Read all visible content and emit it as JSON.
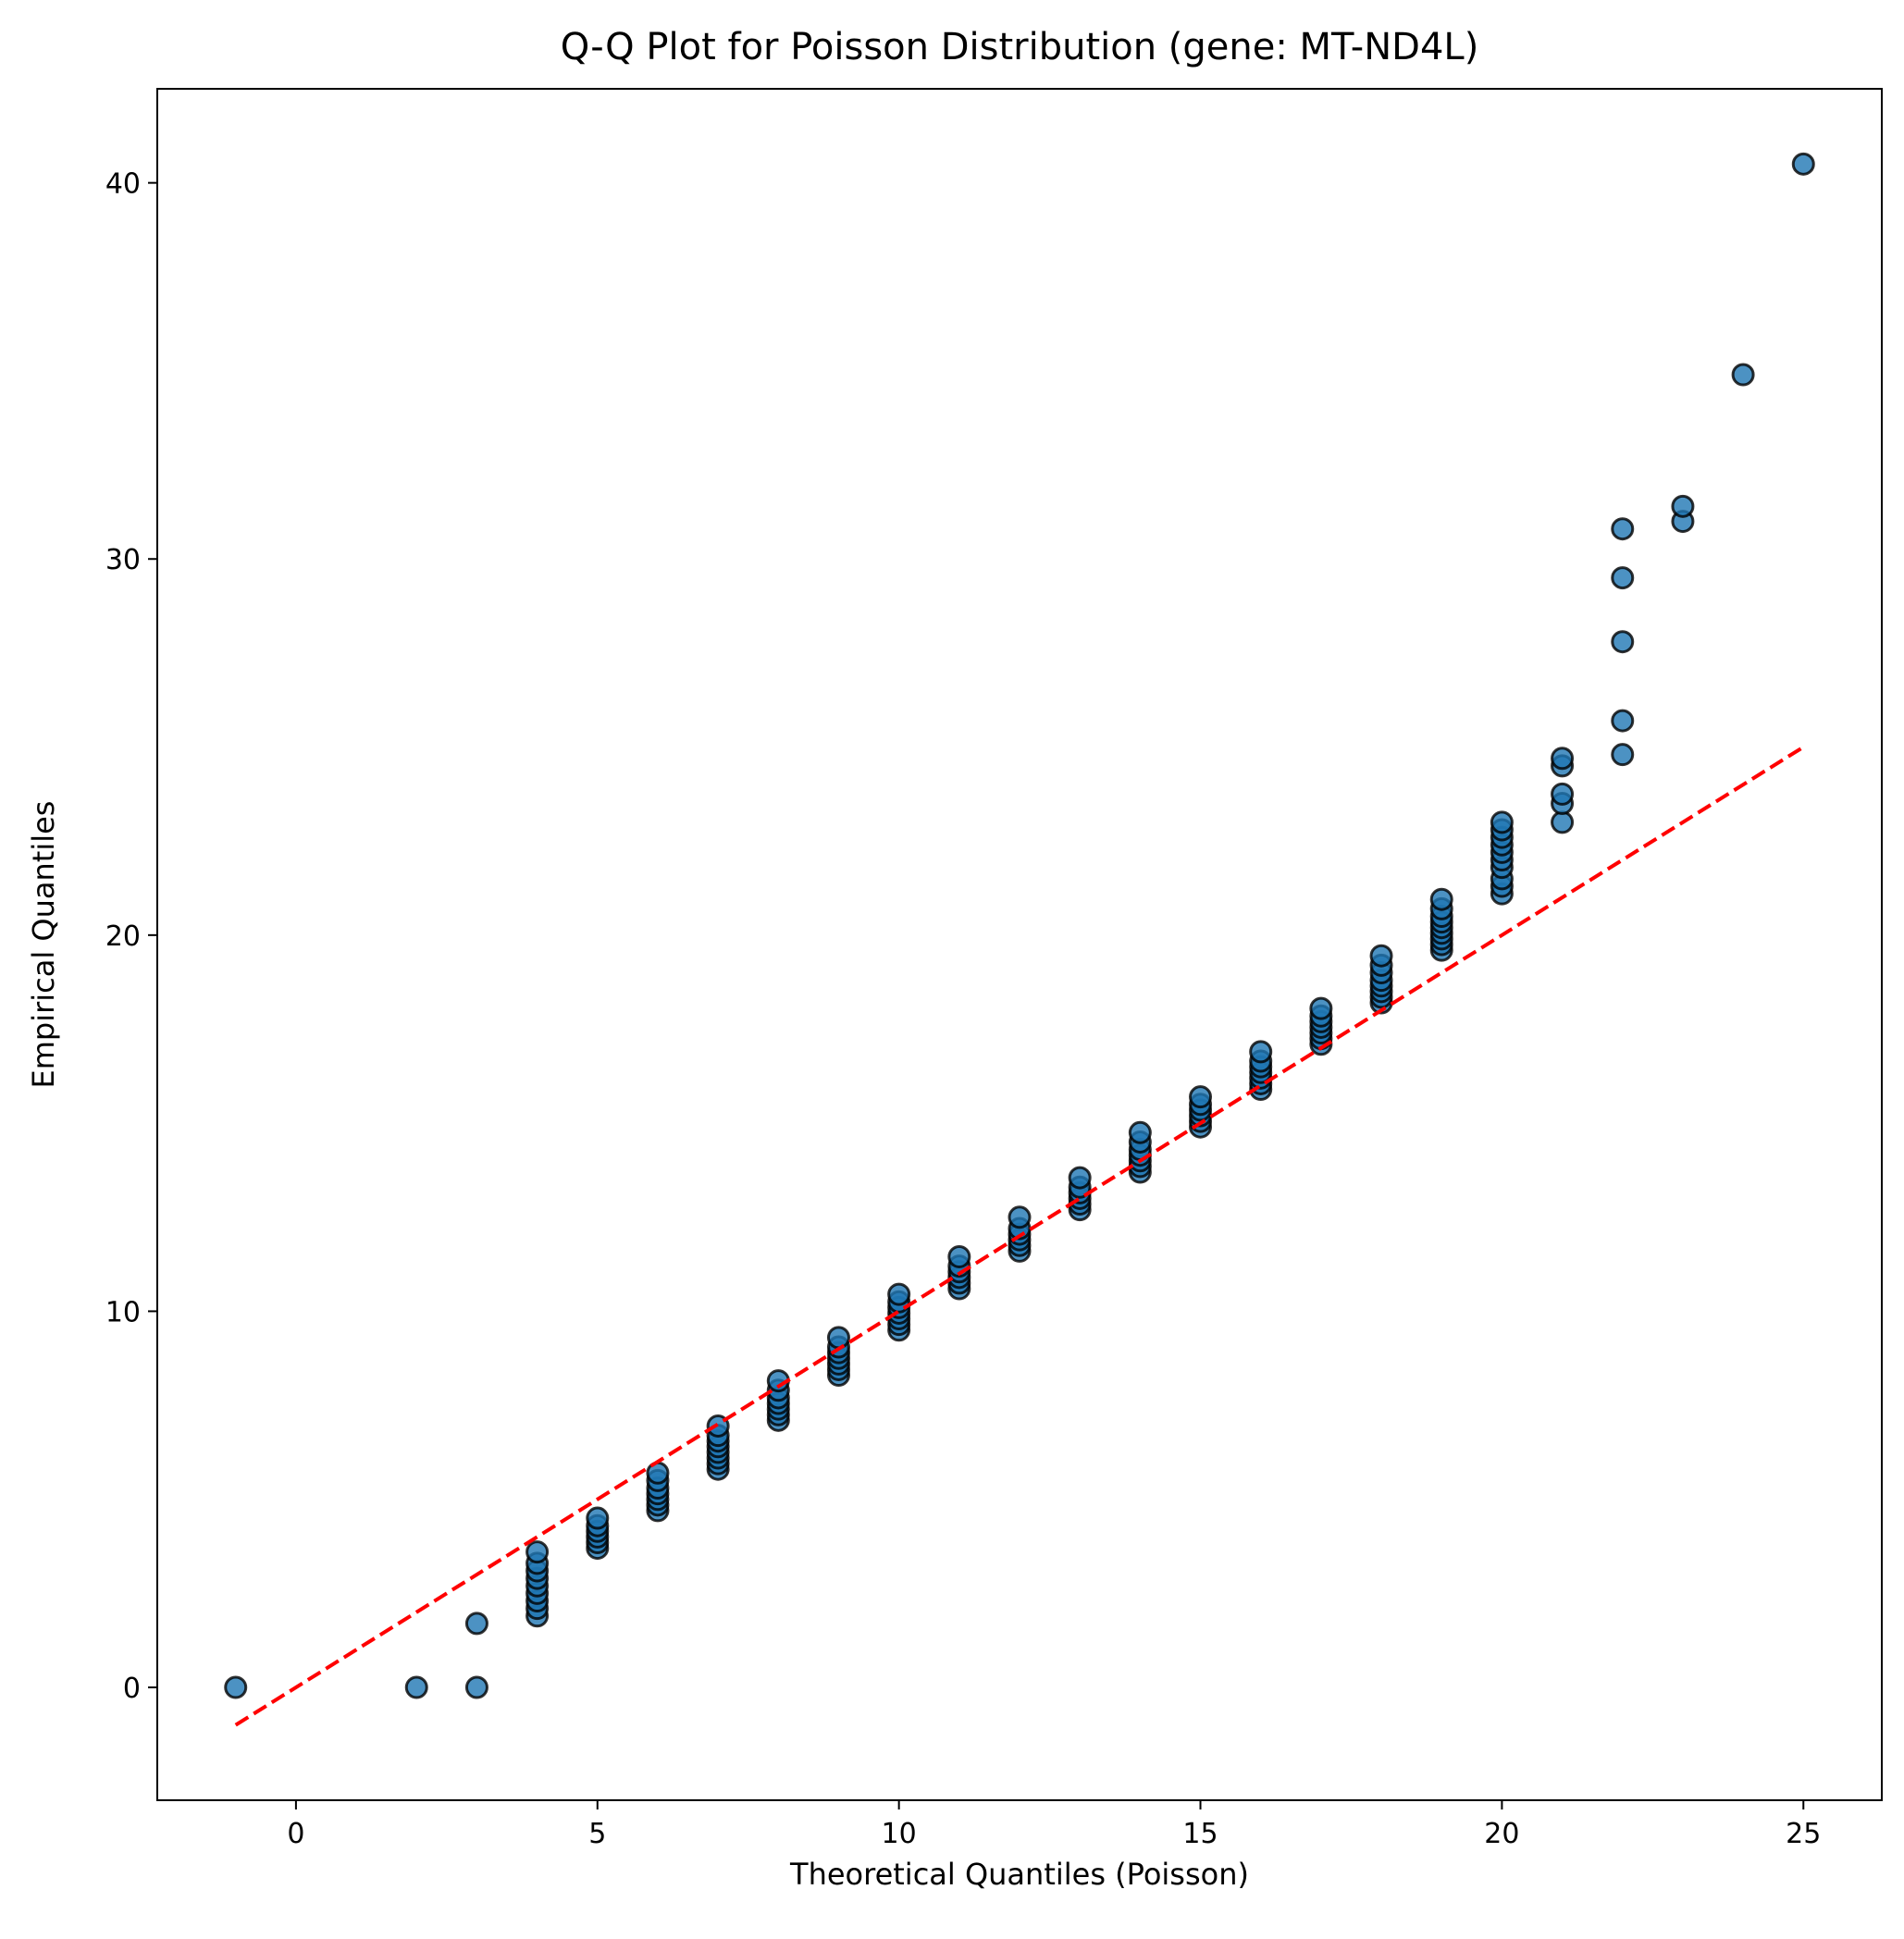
{
  "chart_data": {
    "type": "scatter",
    "title": "Q-Q Plot for Poisson Distribution (gene: MT-ND4L)",
    "xlabel": "Theoretical Quantiles (Poisson)",
    "ylabel": "Empirical Quantiles",
    "xlim": [
      -2.3,
      26.3
    ],
    "ylim": [
      -3,
      42.5
    ],
    "xticks": [
      0,
      5,
      10,
      15,
      20,
      25
    ],
    "yticks": [
      0,
      10,
      20,
      30,
      40
    ],
    "grid": false,
    "reference_line": {
      "name": "y = x",
      "x": [
        -1,
        25
      ],
      "y": [
        -1,
        25
      ],
      "color": "#ff0000",
      "style": "dashed"
    },
    "marker_color": "#1f77b4",
    "marker_edge_color": "#000000",
    "series": [
      {
        "name": "quantiles",
        "points": [
          [
            -1,
            0
          ],
          [
            2,
            0
          ],
          [
            3,
            0
          ],
          [
            3,
            1.7
          ],
          [
            4,
            1.9
          ],
          [
            4,
            2.1
          ],
          [
            4,
            2.3
          ],
          [
            4,
            2.5
          ],
          [
            4,
            2.7
          ],
          [
            4,
            2.9
          ],
          [
            4,
            3.1
          ],
          [
            4,
            3.3
          ],
          [
            4,
            3.6
          ],
          [
            5,
            3.7
          ],
          [
            5,
            3.85
          ],
          [
            5,
            4.0
          ],
          [
            5,
            4.15
          ],
          [
            5,
            4.3
          ],
          [
            5,
            4.5
          ],
          [
            6,
            4.7
          ],
          [
            6,
            4.85
          ],
          [
            6,
            5.0
          ],
          [
            6,
            5.15
          ],
          [
            6,
            5.3
          ],
          [
            6,
            5.5
          ],
          [
            6,
            5.7
          ],
          [
            7,
            5.8
          ],
          [
            7,
            5.95
          ],
          [
            7,
            6.1
          ],
          [
            7,
            6.25
          ],
          [
            7,
            6.4
          ],
          [
            7,
            6.55
          ],
          [
            7,
            6.7
          ],
          [
            7,
            6.95
          ],
          [
            8,
            7.1
          ],
          [
            8,
            7.25
          ],
          [
            8,
            7.4
          ],
          [
            8,
            7.55
          ],
          [
            8,
            7.7
          ],
          [
            8,
            7.9
          ],
          [
            8,
            8.15
          ],
          [
            9,
            8.3
          ],
          [
            9,
            8.45
          ],
          [
            9,
            8.6
          ],
          [
            9,
            8.75
          ],
          [
            9,
            8.9
          ],
          [
            9,
            9.05
          ],
          [
            9,
            9.3
          ],
          [
            10,
            9.5
          ],
          [
            10,
            9.65
          ],
          [
            10,
            9.8
          ],
          [
            10,
            9.95
          ],
          [
            10,
            10.1
          ],
          [
            10,
            10.25
          ],
          [
            10,
            10.45
          ],
          [
            11,
            10.6
          ],
          [
            11,
            10.75
          ],
          [
            11,
            10.9
          ],
          [
            11,
            11.05
          ],
          [
            11,
            11.2
          ],
          [
            11,
            11.45
          ],
          [
            12,
            11.6
          ],
          [
            12,
            11.75
          ],
          [
            12,
            11.9
          ],
          [
            12,
            12.05
          ],
          [
            12,
            12.2
          ],
          [
            12,
            12.5
          ],
          [
            13,
            12.7
          ],
          [
            13,
            12.85
          ],
          [
            13,
            13.0
          ],
          [
            13,
            13.15
          ],
          [
            13,
            13.3
          ],
          [
            13,
            13.55
          ],
          [
            14,
            13.7
          ],
          [
            14,
            13.85
          ],
          [
            14,
            14.0
          ],
          [
            14,
            14.15
          ],
          [
            14,
            14.3
          ],
          [
            14,
            14.5
          ],
          [
            14,
            14.75
          ],
          [
            15,
            14.9
          ],
          [
            15,
            15.05
          ],
          [
            15,
            15.2
          ],
          [
            15,
            15.35
          ],
          [
            15,
            15.5
          ],
          [
            15,
            15.7
          ],
          [
            16,
            15.9
          ],
          [
            16,
            16.05
          ],
          [
            16,
            16.2
          ],
          [
            16,
            16.35
          ],
          [
            16,
            16.5
          ],
          [
            16,
            16.65
          ],
          [
            16,
            16.9
          ],
          [
            17,
            17.1
          ],
          [
            17,
            17.25
          ],
          [
            17,
            17.4
          ],
          [
            17,
            17.55
          ],
          [
            17,
            17.7
          ],
          [
            17,
            17.85
          ],
          [
            17,
            18.05
          ],
          [
            18,
            18.2
          ],
          [
            18,
            18.35
          ],
          [
            18,
            18.5
          ],
          [
            18,
            18.65
          ],
          [
            18,
            18.8
          ],
          [
            18,
            19.0
          ],
          [
            18,
            19.2
          ],
          [
            18,
            19.45
          ],
          [
            19,
            19.6
          ],
          [
            19,
            19.75
          ],
          [
            19,
            19.9
          ],
          [
            19,
            20.05
          ],
          [
            19,
            20.2
          ],
          [
            19,
            20.35
          ],
          [
            19,
            20.5
          ],
          [
            19,
            20.7
          ],
          [
            19,
            20.95
          ],
          [
            20,
            21.1
          ],
          [
            20,
            21.3
          ],
          [
            20,
            21.5
          ],
          [
            20,
            21.8
          ],
          [
            20,
            22.0
          ],
          [
            20,
            22.2
          ],
          [
            20,
            22.4
          ],
          [
            20,
            22.6
          ],
          [
            20,
            22.8
          ],
          [
            20,
            23.0
          ],
          [
            21,
            23.0
          ],
          [
            21,
            23.5
          ],
          [
            21,
            23.75
          ],
          [
            21,
            24.5
          ],
          [
            21,
            24.7
          ],
          [
            22,
            24.8
          ],
          [
            22,
            25.7
          ],
          [
            22,
            27.8
          ],
          [
            22,
            29.5
          ],
          [
            22,
            30.8
          ],
          [
            23,
            31.0
          ],
          [
            23,
            31.4
          ],
          [
            24,
            34.9
          ],
          [
            25,
            40.5
          ]
        ]
      }
    ]
  }
}
